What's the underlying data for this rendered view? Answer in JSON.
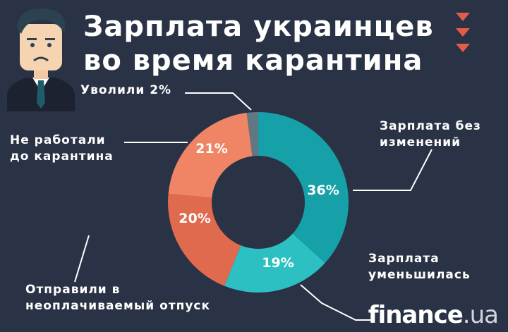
{
  "title": {
    "line1": "Зарплата украинцев",
    "line2": "во время карантина"
  },
  "brand": {
    "name": "finance",
    "tld": ".ua"
  },
  "chart_data": {
    "type": "pie",
    "slices": [
      {
        "label": "Зарплата без изменений",
        "label_line1": "Зарплата без",
        "label_line2": "изменений",
        "value": 36,
        "display": "36%",
        "color": "#16a0a8"
      },
      {
        "label": "Зарплата уменьшилась",
        "label_line1": "Зарплата",
        "label_line2": "уменьшилась",
        "value": 19,
        "display": "19%",
        "color": "#2cc0c2"
      },
      {
        "label": "Отправили в неоплачиваемый отпуск",
        "label_line1": "Отправили в",
        "label_line2": "неоплачиваемый отпуск",
        "value": 20,
        "display": "20%",
        "color": "#e06a4e"
      },
      {
        "label": "Не работали до карантина",
        "label_line1": "Не работали",
        "label_line2": "до карантина",
        "value": 21,
        "display": "21%",
        "color": "#f08566"
      },
      {
        "label": "Уволили",
        "label_line1": "Уволили 2%",
        "label_line2": "",
        "value": 2,
        "display": "2%",
        "color": "#5f7884"
      }
    ]
  }
}
